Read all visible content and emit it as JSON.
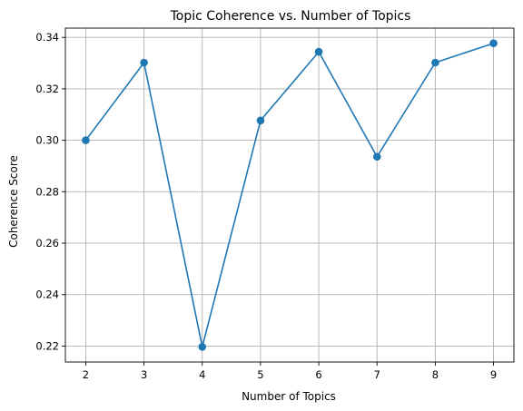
{
  "chart_data": {
    "type": "line",
    "title": "Topic Coherence vs. Number of Topics",
    "xlabel": "Number of Topics",
    "ylabel": "Coherence Score",
    "x": [
      2,
      3,
      4,
      5,
      6,
      7,
      8,
      9
    ],
    "series": [
      {
        "values": [
          0.3,
          0.3302,
          0.2197,
          0.3077,
          0.3344,
          0.2936,
          0.3302,
          0.3377
        ],
        "color": "#1f77b4",
        "marker": "circle"
      }
    ],
    "xlim": [
      1.65,
      9.35
    ],
    "ylim": [
      0.2138,
      0.3436
    ],
    "xticks": [
      2,
      3,
      4,
      5,
      6,
      7,
      8,
      9
    ],
    "xtick_labels": [
      "2",
      "3",
      "4",
      "5",
      "6",
      "7",
      "8",
      "9"
    ],
    "yticks": [
      0.22,
      0.24,
      0.26,
      0.28,
      0.3,
      0.32,
      0.34
    ],
    "ytick_labels": [
      "0.22",
      "0.24",
      "0.26",
      "0.28",
      "0.30",
      "0.32",
      "0.34"
    ],
    "grid": true,
    "legend": "none"
  }
}
